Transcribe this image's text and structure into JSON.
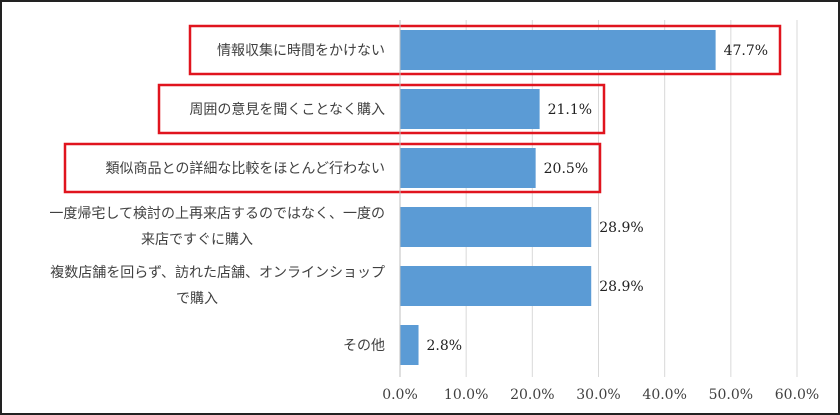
{
  "chart_data": {
    "type": "bar",
    "orientation": "horizontal",
    "categories": [
      [
        "情報収集に時間をかけない"
      ],
      [
        "周囲の意見を聞くことなく購入"
      ],
      [
        "類似商品との詳細な比較をほとんど行わない"
      ],
      [
        "一度帰宅して検討の上再来店するのではなく、一度の",
        "来店ですぐに購入"
      ],
      [
        "複数店舗を回らず、訪れた店舗、オンラインショップ",
        "で購入"
      ],
      [
        "その他"
      ]
    ],
    "values": [
      47.7,
      21.1,
      20.5,
      28.9,
      28.9,
      2.8
    ],
    "data_labels": [
      "47.7%",
      "21.1%",
      "20.5%",
      "28.9%",
      "28.9%",
      "2.8%"
    ],
    "xlim": [
      0,
      60
    ],
    "xticks": [
      "0.0%",
      "10.0%",
      "20.0%",
      "30.0%",
      "40.0%",
      "50.0%",
      "60.0%"
    ],
    "grid": "vertical",
    "highlighted_categories": [
      0,
      1,
      2
    ],
    "colors": {
      "bar": "#5b9bd5",
      "highlight_box": "#e0141e",
      "grid": "#d9d9d9"
    }
  }
}
